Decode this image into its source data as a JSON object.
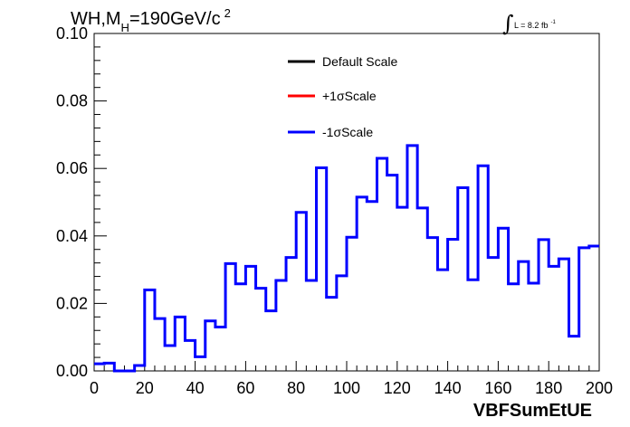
{
  "chart_data": {
    "type": "line",
    "title": {
      "main": "WH,M",
      "sub": "H",
      "rest": "=190GeV/c",
      "sup": "2"
    },
    "annotation": {
      "integral": "∫",
      "text": "L = 8.2 fb",
      "sup": "-1"
    },
    "xlabel": "VBFSumEtUE",
    "ylabel": "",
    "xlim": [
      0,
      200
    ],
    "ylim": [
      0,
      0.1
    ],
    "x_ticks": [
      0,
      20,
      40,
      60,
      80,
      100,
      120,
      140,
      160,
      180,
      200
    ],
    "y_ticks": [
      0.0,
      0.02,
      0.04,
      0.06,
      0.08,
      0.1
    ],
    "x_tick_labels": [
      "0",
      "20",
      "40",
      "60",
      "80",
      "100",
      "120",
      "140",
      "160",
      "180",
      "200"
    ],
    "y_tick_labels": [
      "0.00",
      "0.02",
      "0.04",
      "0.06",
      "0.08",
      "0.10"
    ],
    "bin_width": 4,
    "legend": [
      {
        "label": "Default Scale",
        "color": "#000000"
      },
      {
        "label": "+1σScale",
        "color": "#ff0000"
      },
      {
        "label": "-1σScale",
        "color": "#0000ff"
      }
    ],
    "series": [
      {
        "name": "-1σScale",
        "color": "#0000ff",
        "bin_edges": [
          0,
          4,
          8,
          12,
          16,
          20,
          24,
          28,
          32,
          36,
          40,
          44,
          48,
          52,
          56,
          60,
          64,
          68,
          72,
          76,
          80,
          84,
          88,
          92,
          96,
          100,
          104,
          108,
          112,
          116,
          120,
          124,
          128,
          132,
          136,
          140,
          144,
          148,
          152,
          156,
          160,
          164,
          168,
          172,
          176,
          180,
          184,
          188,
          192,
          196,
          200
        ],
        "values": [
          0.0021,
          0.0023,
          0.0,
          0.0,
          0.0016,
          0.024,
          0.0155,
          0.0075,
          0.016,
          0.009,
          0.0042,
          0.0148,
          0.013,
          0.0318,
          0.0258,
          0.031,
          0.0245,
          0.0178,
          0.0268,
          0.0336,
          0.047,
          0.0268,
          0.0602,
          0.0218,
          0.0282,
          0.0396,
          0.0515,
          0.0502,
          0.063,
          0.058,
          0.0485,
          0.0668,
          0.0483,
          0.0395,
          0.03,
          0.039,
          0.0543,
          0.027,
          0.0608,
          0.0336,
          0.0423,
          0.0258,
          0.0324,
          0.026,
          0.0389,
          0.031,
          0.0332,
          0.0103,
          0.0365,
          0.037
        ]
      }
    ]
  }
}
